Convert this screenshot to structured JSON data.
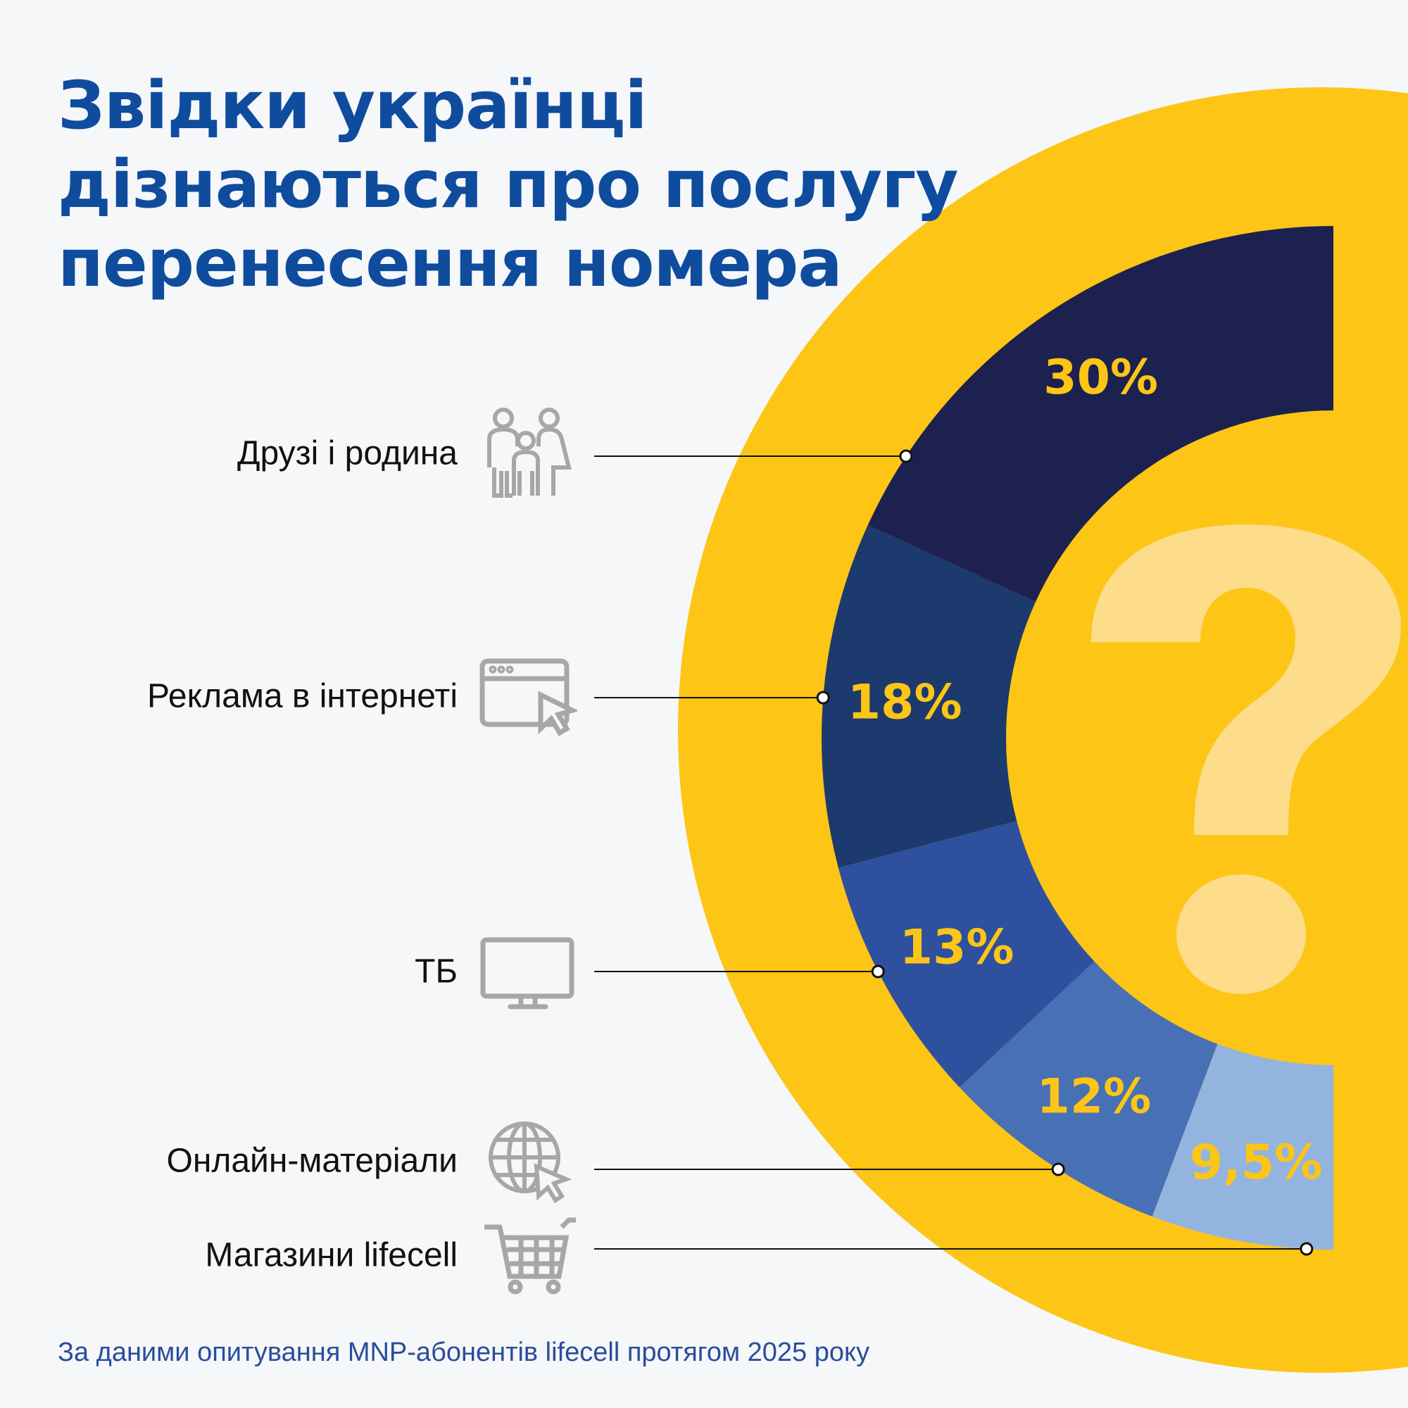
{
  "title": {
    "lines": [
      "Звідки українці",
      "дізнаються про послугу",
      "перенесення номера"
    ]
  },
  "footer": "За даними опитування MNP-абонентів lifecell протягом 2025 року",
  "colors": {
    "background": "#F5F7F9",
    "title": "#0F4C9E",
    "yellow": "#FDC516",
    "question_mark": "#FDDC8A",
    "value_label": "#FDC516"
  },
  "chart_data": {
    "type": "pie",
    "style": "half-donut",
    "title": "",
    "unit": "%",
    "categories": [
      "Друзі і родина",
      "Реклама в інтернеті",
      "ТБ",
      "Онлайн-матеріали",
      "Магазини lifecell"
    ],
    "values": [
      30,
      18,
      13,
      12,
      9.5
    ],
    "value_labels": [
      "30%",
      "18%",
      "13%",
      "12%",
      "9,5%"
    ],
    "colors": [
      "#1C2150",
      "#1C3A6E",
      "#2E509E",
      "#4870B5",
      "#93B4DF"
    ],
    "icons": [
      "family-icon",
      "browser-cursor-icon",
      "tv-monitor-icon",
      "globe-cursor-icon",
      "shopping-cart-icon"
    ],
    "legend": "left"
  },
  "decoration": {
    "question_mark": "?"
  }
}
